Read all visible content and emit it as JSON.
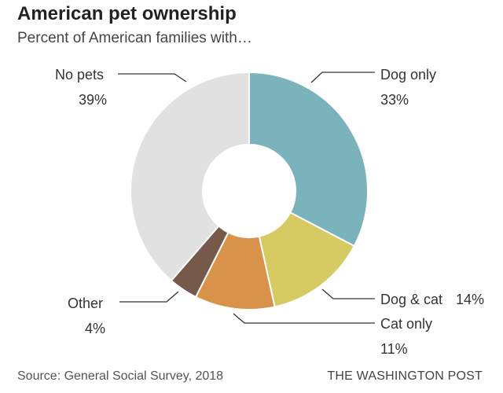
{
  "header": {
    "title": "American pet ownership",
    "subtitle": "Percent of American families with…"
  },
  "chart_data": {
    "type": "pie",
    "variant": "donut",
    "title": "American pet ownership",
    "subtitle": "Percent of American families with…",
    "slices": [
      {
        "name": "Dog only",
        "value": 33,
        "label": "33%",
        "color": "#7ab3bb"
      },
      {
        "name": "Dog & cat",
        "value": 14,
        "label": "14%",
        "color": "#d5cb62"
      },
      {
        "name": "Cat only",
        "value": 11,
        "label": "11%",
        "color": "#d8924a"
      },
      {
        "name": "Other",
        "value": 4,
        "label": "4%",
        "color": "#76594a"
      },
      {
        "name": "No pets",
        "value": 39,
        "label": "39%",
        "color": "#e1e1e1"
      }
    ],
    "start_angle_deg": 0,
    "direction": "clockwise"
  },
  "footer": {
    "source": "Source: General Social Survey, 2018",
    "brand": "THE WASHINGTON POST"
  }
}
